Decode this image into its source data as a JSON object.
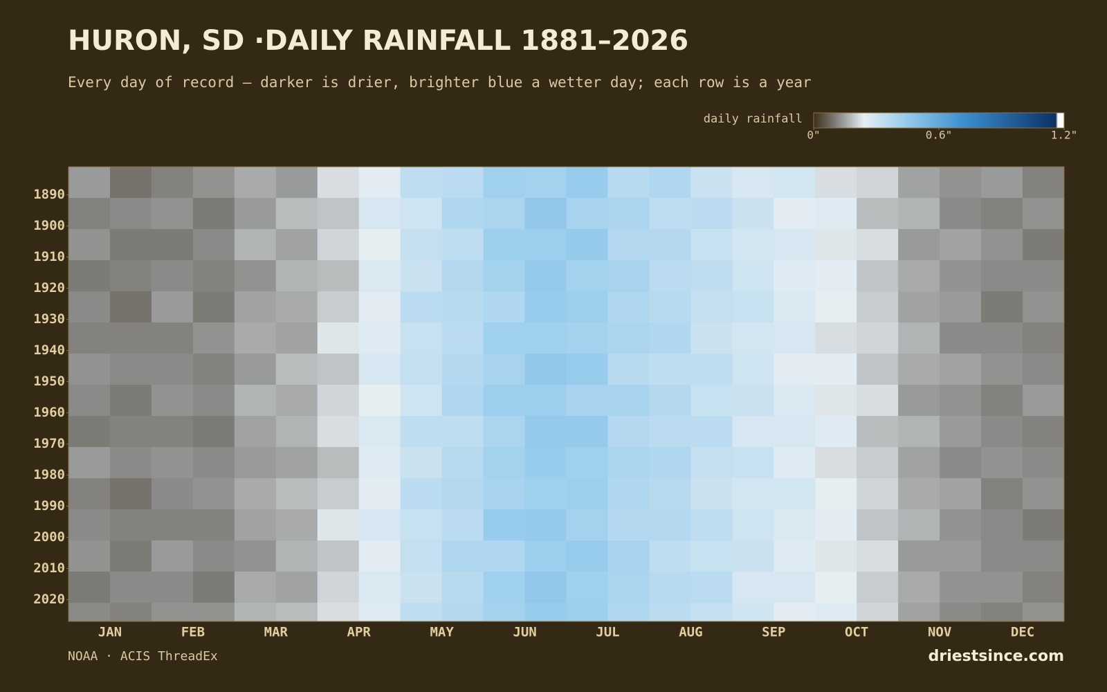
{
  "chart_data": {
    "type": "heatmap",
    "title": "HURON, SD ·DAILY RAINFALL 1881–2026",
    "subtitle": "Every day of record — darker is drier, brighter blue a wetter day; each row is a year",
    "source": "NOAA · ACIS ThreadEx",
    "brand": "driestsince.com",
    "categories": [
      "JAN",
      "FEB",
      "MAR",
      "APR",
      "MAY",
      "JUN",
      "JUL",
      "AUG",
      "SEP",
      "OCT",
      "NOV",
      "DEC"
    ],
    "ylim": [
      1881,
      2027
    ],
    "yticks": [
      1890,
      1900,
      1910,
      1920,
      1930,
      1940,
      1950,
      1960,
      1970,
      1980,
      1990,
      2000,
      2010,
      2020
    ],
    "y_bins": [
      1881,
      1891,
      1901,
      1911,
      1921,
      1931,
      1941,
      1951,
      1961,
      1971,
      1981,
      1991,
      2001,
      2011,
      2021,
      2027
    ],
    "values": [
      [
        0.14,
        0.09,
        0.11,
        0.13,
        0.16,
        0.14,
        0.22,
        0.25,
        0.34,
        0.35,
        0.42,
        0.41,
        0.44,
        0.36,
        0.38,
        0.31,
        0.28,
        0.29,
        0.22,
        0.21,
        0.15,
        0.13,
        0.14,
        0.11
      ],
      [
        0.11,
        0.12,
        0.13,
        0.1,
        0.14,
        0.18,
        0.19,
        0.28,
        0.3,
        0.38,
        0.39,
        0.46,
        0.4,
        0.39,
        0.34,
        0.35,
        0.31,
        0.25,
        0.26,
        0.18,
        0.17,
        0.12,
        0.11,
        0.13
      ],
      [
        0.13,
        0.1,
        0.1,
        0.12,
        0.17,
        0.15,
        0.21,
        0.24,
        0.33,
        0.34,
        0.43,
        0.43,
        0.45,
        0.37,
        0.37,
        0.32,
        0.29,
        0.28,
        0.23,
        0.22,
        0.14,
        0.15,
        0.13,
        0.1
      ],
      [
        0.1,
        0.11,
        0.12,
        0.11,
        0.13,
        0.17,
        0.18,
        0.27,
        0.31,
        0.37,
        0.41,
        0.45,
        0.41,
        0.4,
        0.35,
        0.34,
        0.3,
        0.26,
        0.25,
        0.19,
        0.16,
        0.13,
        0.12,
        0.12
      ],
      [
        0.12,
        0.09,
        0.14,
        0.1,
        0.15,
        0.16,
        0.2,
        0.25,
        0.35,
        0.36,
        0.38,
        0.44,
        0.43,
        0.38,
        0.36,
        0.33,
        0.32,
        0.27,
        0.24,
        0.2,
        0.15,
        0.14,
        0.1,
        0.13
      ],
      [
        0.11,
        0.11,
        0.11,
        0.13,
        0.16,
        0.15,
        0.23,
        0.26,
        0.32,
        0.35,
        0.42,
        0.42,
        0.41,
        0.39,
        0.38,
        0.31,
        0.29,
        0.28,
        0.22,
        0.21,
        0.17,
        0.12,
        0.12,
        0.11
      ],
      [
        0.13,
        0.12,
        0.12,
        0.11,
        0.14,
        0.18,
        0.19,
        0.28,
        0.33,
        0.37,
        0.4,
        0.46,
        0.44,
        0.36,
        0.34,
        0.34,
        0.3,
        0.25,
        0.25,
        0.19,
        0.16,
        0.15,
        0.13,
        0.12
      ],
      [
        0.12,
        0.1,
        0.13,
        0.12,
        0.17,
        0.16,
        0.21,
        0.24,
        0.3,
        0.38,
        0.43,
        0.43,
        0.4,
        0.4,
        0.37,
        0.32,
        0.31,
        0.27,
        0.23,
        0.22,
        0.14,
        0.13,
        0.11,
        0.14
      ],
      [
        0.1,
        0.11,
        0.11,
        0.1,
        0.15,
        0.17,
        0.22,
        0.27,
        0.34,
        0.34,
        0.39,
        0.45,
        0.45,
        0.37,
        0.35,
        0.35,
        0.28,
        0.28,
        0.26,
        0.18,
        0.17,
        0.14,
        0.12,
        0.11
      ],
      [
        0.14,
        0.12,
        0.13,
        0.12,
        0.14,
        0.15,
        0.18,
        0.26,
        0.31,
        0.36,
        0.41,
        0.44,
        0.42,
        0.39,
        0.38,
        0.33,
        0.32,
        0.26,
        0.22,
        0.2,
        0.15,
        0.12,
        0.13,
        0.12
      ],
      [
        0.11,
        0.09,
        0.12,
        0.13,
        0.16,
        0.18,
        0.2,
        0.25,
        0.35,
        0.37,
        0.4,
        0.42,
        0.43,
        0.38,
        0.36,
        0.31,
        0.29,
        0.29,
        0.24,
        0.21,
        0.16,
        0.15,
        0.11,
        0.13
      ],
      [
        0.12,
        0.11,
        0.11,
        0.11,
        0.15,
        0.16,
        0.23,
        0.28,
        0.32,
        0.35,
        0.44,
        0.45,
        0.41,
        0.37,
        0.37,
        0.34,
        0.3,
        0.27,
        0.25,
        0.19,
        0.17,
        0.13,
        0.12,
        0.1
      ],
      [
        0.13,
        0.1,
        0.14,
        0.12,
        0.13,
        0.17,
        0.19,
        0.25,
        0.33,
        0.38,
        0.38,
        0.43,
        0.44,
        0.4,
        0.34,
        0.32,
        0.31,
        0.26,
        0.23,
        0.22,
        0.14,
        0.14,
        0.12,
        0.12
      ],
      [
        0.1,
        0.12,
        0.12,
        0.1,
        0.16,
        0.15,
        0.21,
        0.27,
        0.31,
        0.36,
        0.42,
        0.46,
        0.42,
        0.39,
        0.36,
        0.35,
        0.28,
        0.28,
        0.24,
        0.2,
        0.16,
        0.13,
        0.13,
        0.11
      ],
      [
        0.12,
        0.11,
        0.13,
        0.13,
        0.17,
        0.18,
        0.22,
        0.26,
        0.34,
        0.37,
        0.41,
        0.44,
        0.43,
        0.38,
        0.35,
        0.33,
        0.3,
        0.25,
        0.26,
        0.21,
        0.15,
        0.12,
        0.11,
        0.13
      ]
    ],
    "colorbar": {
      "label": "daily rainfall",
      "lim": [
        0,
        1.2
      ],
      "ticks": [
        {
          "value": 0,
          "label": "0\""
        },
        {
          "value": 0.6,
          "label": "0.6\""
        },
        {
          "value": 1.2,
          "label": "1.2\""
        }
      ],
      "stops": [
        {
          "value": 0,
          "color": "#3a2e18"
        },
        {
          "value": 0.12,
          "color": "#8a8a88"
        },
        {
          "value": 0.24,
          "color": "#e6eef2"
        },
        {
          "value": 0.42,
          "color": "#9fd0ee"
        },
        {
          "value": 0.72,
          "color": "#3a8fd0"
        },
        {
          "value": 1.1,
          "color": "#123e74"
        },
        {
          "value": 1.16,
          "color": "#0d3060"
        },
        {
          "value": 1.17,
          "color": "#ffffff"
        },
        {
          "value": 1.2,
          "color": "#ffffff"
        }
      ]
    }
  }
}
